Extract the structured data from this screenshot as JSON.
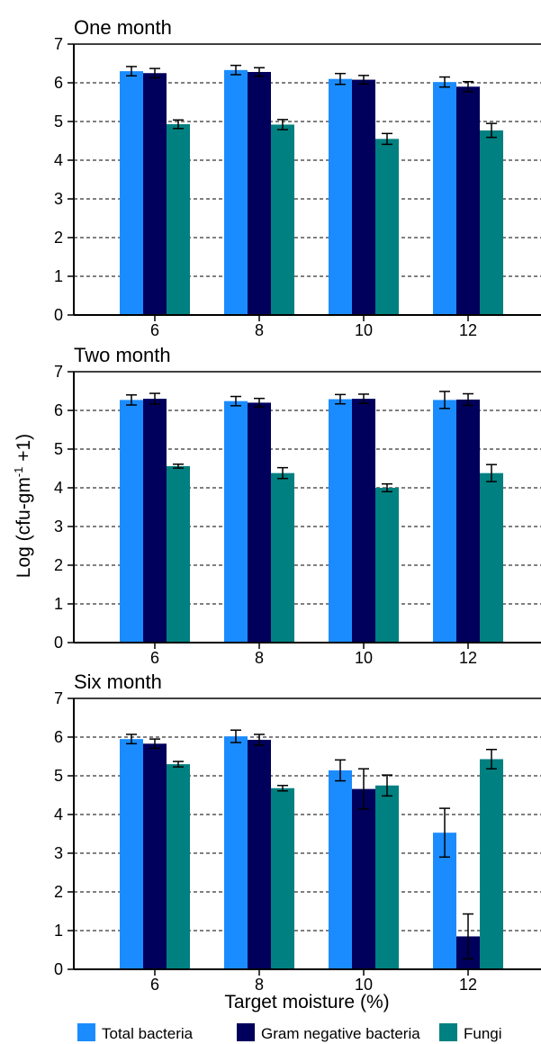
{
  "chart_data": {
    "type": "bar",
    "ylabel": "Log (cfu-gm",
    "ylabel_sup": "-1",
    "ylabel_suffix": " +1)",
    "xlabel": "Target moisture (%)",
    "categories": [
      "6",
      "8",
      "10",
      "12"
    ],
    "ylim": [
      0,
      7
    ],
    "yticks": [
      "0",
      "1",
      "2",
      "3",
      "4",
      "5",
      "6",
      "7"
    ],
    "grid": "dashed horizontal",
    "legend_position": "bottom",
    "legend": [
      {
        "name": "Total bacteria",
        "color": "#1a8cff"
      },
      {
        "name": "Gram negative bacteria",
        "color": "#00005c"
      },
      {
        "name": "Fungi",
        "color": "#008080"
      }
    ],
    "panels": [
      {
        "title": "One month",
        "series": [
          {
            "name": "Total bacteria",
            "values": [
              6.3,
              6.33,
              6.1,
              6.02
            ],
            "errors": [
              0.12,
              0.12,
              0.14,
              0.13
            ]
          },
          {
            "name": "Gram negative bacteria",
            "values": [
              6.25,
              6.28,
              6.08,
              5.9
            ],
            "errors": [
              0.12,
              0.11,
              0.11,
              0.13
            ]
          },
          {
            "name": "Fungi",
            "values": [
              4.93,
              4.92,
              4.55,
              4.77
            ],
            "errors": [
              0.11,
              0.13,
              0.14,
              0.18
            ]
          }
        ]
      },
      {
        "title": "Two month",
        "series": [
          {
            "name": "Total bacteria",
            "values": [
              6.27,
              6.24,
              6.29,
              6.27
            ],
            "errors": [
              0.13,
              0.12,
              0.12,
              0.22
            ]
          },
          {
            "name": "Gram negative bacteria",
            "values": [
              6.3,
              6.2,
              6.3,
              6.28
            ],
            "errors": [
              0.14,
              0.11,
              0.12,
              0.15
            ]
          },
          {
            "name": "Fungi",
            "values": [
              4.56,
              4.38,
              4.0,
              4.38
            ],
            "errors": [
              0.05,
              0.14,
              0.1,
              0.22
            ]
          }
        ]
      },
      {
        "title": "Six month",
        "series": [
          {
            "name": "Total bacteria",
            "values": [
              5.95,
              6.02,
              5.14,
              3.53
            ],
            "errors": [
              0.12,
              0.16,
              0.27,
              0.63
            ]
          },
          {
            "name": "Gram negative bacteria",
            "values": [
              5.83,
              5.93,
              4.66,
              0.85
            ],
            "errors": [
              0.12,
              0.14,
              0.52,
              0.58
            ]
          },
          {
            "name": "Fungi",
            "values": [
              5.3,
              4.68,
              4.75,
              5.43
            ],
            "errors": [
              0.07,
              0.07,
              0.27,
              0.25
            ]
          }
        ]
      }
    ]
  }
}
